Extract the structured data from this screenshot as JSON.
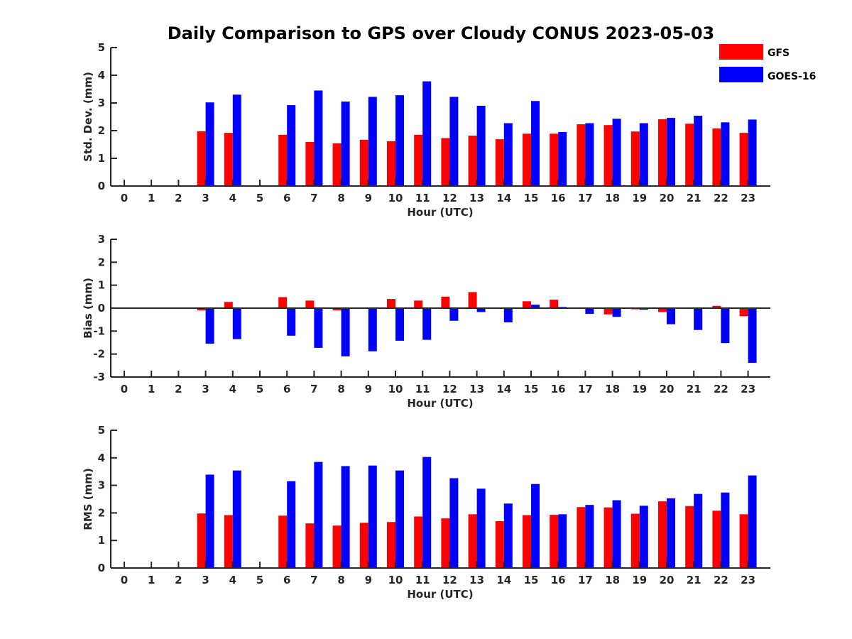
{
  "colors": {
    "GFS": "#ff0000",
    "GOES-16": "#0000ff",
    "axis": "#262626"
  },
  "chart_data": {
    "title": "Daily Comparison to GPS over Cloudy CONUS 2023-05-03",
    "legend": {
      "placement": "top-right",
      "entries": [
        "GFS",
        "GOES-16"
      ]
    },
    "panels": [
      {
        "type": "bar",
        "ylabel": "Std. Dev. (mm)",
        "xlabel": "Hour (UTC)",
        "ylim": [
          0,
          5
        ],
        "yticks": [
          "0",
          "1",
          "2",
          "3",
          "4",
          "5"
        ],
        "categories": [
          "0",
          "1",
          "2",
          "3",
          "4",
          "5",
          "6",
          "7",
          "8",
          "9",
          "10",
          "11",
          "12",
          "13",
          "14",
          "15",
          "16",
          "17",
          "18",
          "19",
          "20",
          "21",
          "22",
          "23"
        ],
        "series": [
          {
            "name": "GFS",
            "values": [
              null,
              null,
              null,
              1.98,
              1.92,
              null,
              1.85,
              1.59,
              1.54,
              1.67,
              1.62,
              1.85,
              1.73,
              1.82,
              1.69,
              1.89,
              1.89,
              2.23,
              2.2,
              1.97,
              2.41,
              2.25,
              2.08,
              1.92
            ]
          },
          {
            "name": "GOES-16",
            "values": [
              null,
              null,
              null,
              3.02,
              3.3,
              null,
              2.92,
              3.45,
              3.05,
              3.22,
              3.28,
              3.78,
              3.22,
              2.9,
              2.27,
              3.07,
              1.95,
              2.27,
              2.43,
              2.27,
              2.46,
              2.54,
              2.3,
              2.4
            ]
          }
        ]
      },
      {
        "type": "bar",
        "ylabel": "Bias (mm)",
        "xlabel": "Hour (UTC)",
        "ylim": [
          -3,
          3
        ],
        "yticks": [
          "-3",
          "-2",
          "-1",
          "0",
          "1",
          "2",
          "3"
        ],
        "categories": [
          "0",
          "1",
          "2",
          "3",
          "4",
          "5",
          "6",
          "7",
          "8",
          "9",
          "10",
          "11",
          "12",
          "13",
          "14",
          "15",
          "16",
          "17",
          "18",
          "19",
          "20",
          "21",
          "22",
          "23"
        ],
        "series": [
          {
            "name": "GFS",
            "values": [
              null,
              null,
              null,
              -0.1,
              0.27,
              null,
              0.48,
              0.33,
              -0.1,
              -0.03,
              0.4,
              0.33,
              0.5,
              0.7,
              0.03,
              0.3,
              0.37,
              0.0,
              -0.27,
              -0.05,
              -0.17,
              -0.03,
              0.1,
              -0.35
            ]
          },
          {
            "name": "GOES-16",
            "values": [
              null,
              null,
              null,
              -1.55,
              -1.35,
              null,
              -1.2,
              -1.73,
              -2.1,
              -1.88,
              -1.42,
              -1.38,
              -0.55,
              -0.17,
              -0.62,
              0.15,
              0.05,
              -0.25,
              -0.38,
              -0.07,
              -0.7,
              -0.95,
              -1.52,
              -2.38
            ]
          }
        ]
      },
      {
        "type": "bar",
        "ylabel": "RMS (mm)",
        "xlabel": "Hour (UTC)",
        "ylim": [
          0,
          5
        ],
        "yticks": [
          "0",
          "1",
          "2",
          "3",
          "4",
          "5"
        ],
        "categories": [
          "0",
          "1",
          "2",
          "3",
          "4",
          "5",
          "6",
          "7",
          "8",
          "9",
          "10",
          "11",
          "12",
          "13",
          "14",
          "15",
          "16",
          "17",
          "18",
          "19",
          "20",
          "21",
          "22",
          "23"
        ],
        "series": [
          {
            "name": "GFS",
            "values": [
              null,
              null,
              null,
              1.98,
              1.92,
              null,
              1.9,
              1.62,
              1.54,
              1.64,
              1.67,
              1.87,
              1.8,
              1.95,
              1.7,
              1.92,
              1.93,
              2.21,
              2.2,
              1.97,
              2.42,
              2.25,
              2.08,
              1.95
            ]
          },
          {
            "name": "GOES-16",
            "values": [
              null,
              null,
              null,
              3.39,
              3.54,
              null,
              3.15,
              3.85,
              3.7,
              3.72,
              3.54,
              4.03,
              3.26,
              2.88,
              2.34,
              3.05,
              1.95,
              2.29,
              2.46,
              2.26,
              2.53,
              2.69,
              2.74,
              3.36
            ]
          }
        ]
      }
    ]
  }
}
